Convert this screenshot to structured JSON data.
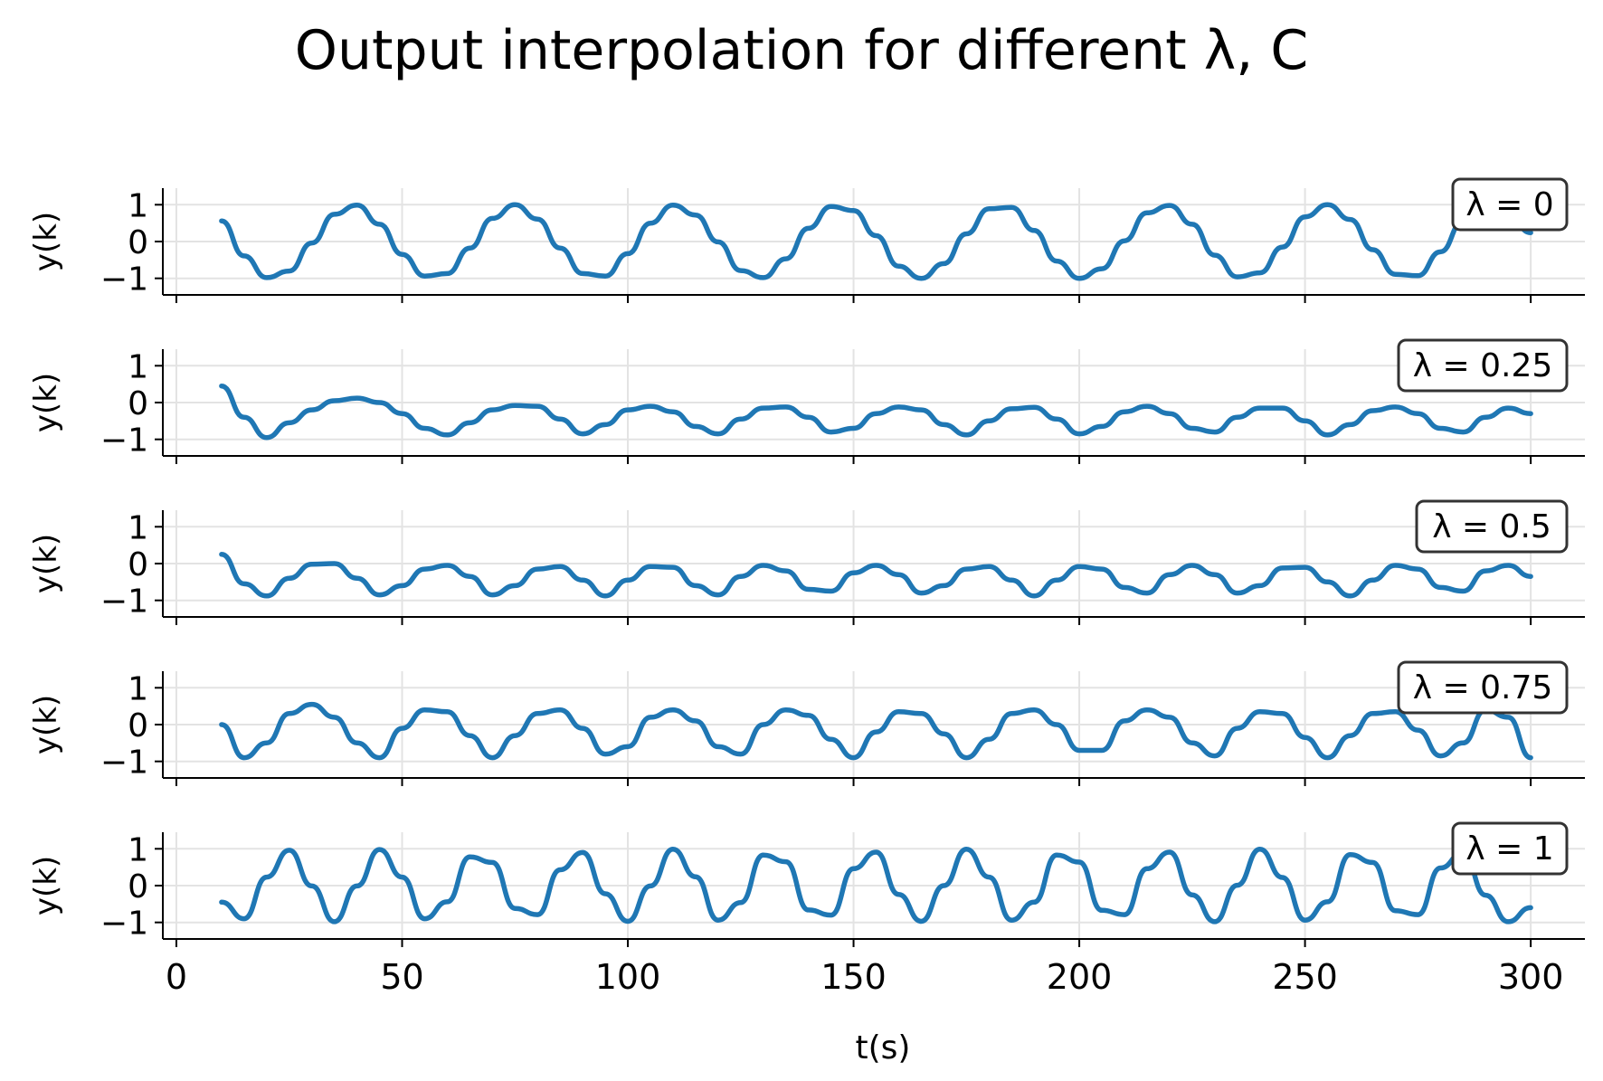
{
  "figure": {
    "title": "Output interpolation for different λ, C",
    "line_color": "#1f77b4"
  },
  "chart_data": [
    {
      "type": "line",
      "panel_label": "λ = 0",
      "ylabel": "y(k)",
      "xlabel": "",
      "xlim": [
        -3,
        312
      ],
      "ylim": [
        -1.45,
        1.45
      ],
      "xticks": [
        0,
        50,
        100,
        150,
        200,
        250,
        300
      ],
      "yticks": [
        -1,
        0,
        1
      ],
      "ytick_labels": [
        "−1",
        "0",
        "1"
      ],
      "grid": true,
      "series": [
        {
          "x": [
            10,
            15,
            20,
            25,
            30,
            35,
            40,
            45,
            50,
            55,
            60,
            65,
            70,
            75,
            80,
            85,
            90,
            95,
            100,
            105,
            110,
            115,
            120,
            125,
            130,
            135,
            140,
            145,
            150,
            155,
            160,
            165,
            170,
            175,
            180,
            185,
            190,
            195,
            200,
            205,
            210,
            215,
            220,
            225,
            230,
            235,
            240,
            245,
            250,
            255,
            260,
            265,
            270,
            275,
            280,
            285,
            290,
            295,
            300
          ],
          "y": [
            0.56,
            -0.39,
            -0.98,
            -0.8,
            -0.04,
            0.74,
            0.99,
            0.47,
            -0.35,
            -0.94,
            -0.87,
            -0.18,
            0.63,
            1.0,
            0.61,
            -0.18,
            -0.87,
            -0.94,
            -0.33,
            0.5,
            0.99,
            0.72,
            -0.01,
            -0.79,
            -0.98,
            -0.47,
            0.36,
            0.95,
            0.84,
            0.16,
            -0.67,
            -1.0,
            -0.6,
            0.21,
            0.89,
            0.93,
            0.3,
            -0.53,
            -1.0,
            -0.74,
            0.02,
            0.78,
            0.98,
            0.47,
            -0.37,
            -0.96,
            -0.85,
            -0.15,
            0.67,
            1.0,
            0.6,
            -0.22,
            -0.89,
            -0.93,
            -0.28,
            0.55,
            1.0,
            0.73,
            0.24
          ]
        }
      ]
    },
    {
      "type": "line",
      "panel_label": "λ = 0.25",
      "ylabel": "y(k)",
      "xlabel": "",
      "xlim": [
        -3,
        312
      ],
      "ylim": [
        -1.45,
        1.45
      ],
      "xticks": [
        0,
        50,
        100,
        150,
        200,
        250,
        300
      ],
      "yticks": [
        -1,
        0,
        1
      ],
      "ytick_labels": [
        "−1",
        "0",
        "1"
      ],
      "grid": true,
      "series": [
        {
          "x": [
            10,
            15,
            20,
            25,
            30,
            35,
            40,
            45,
            50,
            55,
            60,
            65,
            70,
            75,
            80,
            85,
            90,
            95,
            100,
            105,
            110,
            115,
            120,
            125,
            130,
            135,
            140,
            145,
            150,
            155,
            160,
            165,
            170,
            175,
            180,
            185,
            190,
            195,
            200,
            205,
            210,
            215,
            220,
            225,
            230,
            235,
            240,
            245,
            250,
            255,
            260,
            265,
            270,
            275,
            280,
            285,
            290,
            295,
            300
          ],
          "y": [
            0.45,
            -0.4,
            -0.95,
            -0.55,
            -0.2,
            0.05,
            0.12,
            0.0,
            -0.3,
            -0.7,
            -0.88,
            -0.55,
            -0.2,
            -0.08,
            -0.1,
            -0.45,
            -0.85,
            -0.6,
            -0.2,
            -0.1,
            -0.25,
            -0.65,
            -0.85,
            -0.45,
            -0.15,
            -0.12,
            -0.4,
            -0.8,
            -0.7,
            -0.3,
            -0.12,
            -0.2,
            -0.6,
            -0.88,
            -0.5,
            -0.17,
            -0.13,
            -0.45,
            -0.85,
            -0.65,
            -0.25,
            -0.1,
            -0.3,
            -0.7,
            -0.8,
            -0.4,
            -0.15,
            -0.15,
            -0.5,
            -0.88,
            -0.6,
            -0.22,
            -0.12,
            -0.3,
            -0.7,
            -0.8,
            -0.4,
            -0.15,
            -0.3
          ]
        }
      ]
    },
    {
      "type": "line",
      "panel_label": "λ = 0.5",
      "ylabel": "y(k)",
      "xlabel": "",
      "xlim": [
        -3,
        312
      ],
      "ylim": [
        -1.45,
        1.45
      ],
      "xticks": [
        0,
        50,
        100,
        150,
        200,
        250,
        300
      ],
      "yticks": [
        -1,
        0,
        1
      ],
      "ytick_labels": [
        "−1",
        "0",
        "1"
      ],
      "grid": true,
      "series": [
        {
          "x": [
            10,
            15,
            20,
            25,
            30,
            35,
            40,
            45,
            50,
            55,
            60,
            65,
            70,
            75,
            80,
            85,
            90,
            95,
            100,
            105,
            110,
            115,
            120,
            125,
            130,
            135,
            140,
            145,
            150,
            155,
            160,
            165,
            170,
            175,
            180,
            185,
            190,
            195,
            200,
            205,
            210,
            215,
            220,
            225,
            230,
            235,
            240,
            245,
            250,
            255,
            260,
            265,
            270,
            275,
            280,
            285,
            290,
            295,
            300
          ],
          "y": [
            0.25,
            -0.55,
            -0.88,
            -0.4,
            -0.02,
            0.0,
            -0.4,
            -0.85,
            -0.6,
            -0.15,
            -0.05,
            -0.35,
            -0.85,
            -0.6,
            -0.15,
            -0.08,
            -0.45,
            -0.88,
            -0.45,
            -0.08,
            -0.1,
            -0.6,
            -0.85,
            -0.35,
            -0.05,
            -0.2,
            -0.7,
            -0.75,
            -0.25,
            -0.05,
            -0.3,
            -0.8,
            -0.6,
            -0.15,
            -0.08,
            -0.45,
            -0.88,
            -0.45,
            -0.08,
            -0.15,
            -0.65,
            -0.8,
            -0.3,
            -0.05,
            -0.3,
            -0.8,
            -0.6,
            -0.12,
            -0.1,
            -0.5,
            -0.88,
            -0.45,
            -0.05,
            -0.15,
            -0.65,
            -0.75,
            -0.2,
            -0.05,
            -0.35
          ]
        }
      ]
    },
    {
      "type": "line",
      "panel_label": "λ = 0.75",
      "ylabel": "y(k)",
      "xlabel": "",
      "xlim": [
        -3,
        312
      ],
      "ylim": [
        -1.45,
        1.45
      ],
      "xticks": [
        0,
        50,
        100,
        150,
        200,
        250,
        300
      ],
      "yticks": [
        -1,
        0,
        1
      ],
      "ytick_labels": [
        "−1",
        "0",
        "1"
      ],
      "grid": true,
      "series": [
        {
          "x": [
            10,
            15,
            20,
            25,
            30,
            35,
            40,
            45,
            50,
            55,
            60,
            65,
            70,
            75,
            80,
            85,
            90,
            95,
            100,
            105,
            110,
            115,
            120,
            125,
            130,
            135,
            140,
            145,
            150,
            155,
            160,
            165,
            170,
            175,
            180,
            185,
            190,
            195,
            200,
            205,
            210,
            215,
            220,
            225,
            230,
            235,
            240,
            245,
            250,
            255,
            260,
            265,
            270,
            275,
            280,
            285,
            290,
            295,
            300
          ],
          "y": [
            0.0,
            -0.9,
            -0.5,
            0.3,
            0.55,
            0.2,
            -0.5,
            -0.9,
            -0.1,
            0.4,
            0.35,
            -0.3,
            -0.9,
            -0.3,
            0.3,
            0.4,
            -0.1,
            -0.8,
            -0.6,
            0.2,
            0.4,
            0.1,
            -0.6,
            -0.8,
            0.0,
            0.4,
            0.25,
            -0.4,
            -0.9,
            -0.2,
            0.35,
            0.3,
            -0.25,
            -0.9,
            -0.4,
            0.3,
            0.4,
            0.0,
            -0.7,
            -0.7,
            0.1,
            0.4,
            0.2,
            -0.5,
            -0.85,
            -0.1,
            0.35,
            0.3,
            -0.35,
            -0.9,
            -0.3,
            0.3,
            0.35,
            -0.15,
            -0.85,
            -0.5,
            0.4,
            0.2,
            -0.9
          ]
        }
      ]
    },
    {
      "type": "line",
      "panel_label": "λ = 1",
      "ylabel": "y(k)",
      "xlabel": "t(s)",
      "xlim": [
        -3,
        312
      ],
      "ylim": [
        -1.45,
        1.45
      ],
      "xticks": [
        0,
        50,
        100,
        150,
        200,
        250,
        300
      ],
      "xtick_labels": [
        "0",
        "50",
        "100",
        "150",
        "200",
        "250",
        "300"
      ],
      "yticks": [
        -1,
        0,
        1
      ],
      "ytick_labels": [
        "−1",
        "0",
        "1"
      ],
      "grid": true,
      "series": [
        {
          "x": [
            10,
            15,
            20,
            25,
            30,
            35,
            40,
            45,
            50,
            55,
            60,
            65,
            70,
            75,
            80,
            85,
            90,
            95,
            100,
            105,
            110,
            115,
            120,
            125,
            130,
            135,
            140,
            145,
            150,
            155,
            160,
            165,
            170,
            175,
            180,
            185,
            190,
            195,
            200,
            205,
            210,
            215,
            220,
            225,
            230,
            235,
            240,
            245,
            250,
            255,
            260,
            265,
            270,
            275,
            280,
            285,
            290,
            295,
            300
          ],
          "y": [
            -0.45,
            -0.9,
            0.23,
            0.96,
            -0.01,
            -0.98,
            -0.01,
            0.98,
            0.23,
            -0.9,
            -0.44,
            0.78,
            0.63,
            -0.62,
            -0.79,
            0.43,
            0.9,
            -0.22,
            -0.97,
            -0.01,
            0.99,
            0.24,
            -0.94,
            -0.46,
            0.83,
            0.65,
            -0.66,
            -0.8,
            0.46,
            0.91,
            -0.24,
            -0.97,
            0.0,
            0.99,
            0.23,
            -0.94,
            -0.45,
            0.83,
            0.64,
            -0.67,
            -0.79,
            0.46,
            0.91,
            -0.25,
            -0.98,
            0.01,
            0.99,
            0.22,
            -0.94,
            -0.44,
            0.84,
            0.63,
            -0.68,
            -0.79,
            0.48,
            0.9,
            -0.26,
            -0.98,
            -0.6
          ]
        }
      ]
    }
  ]
}
